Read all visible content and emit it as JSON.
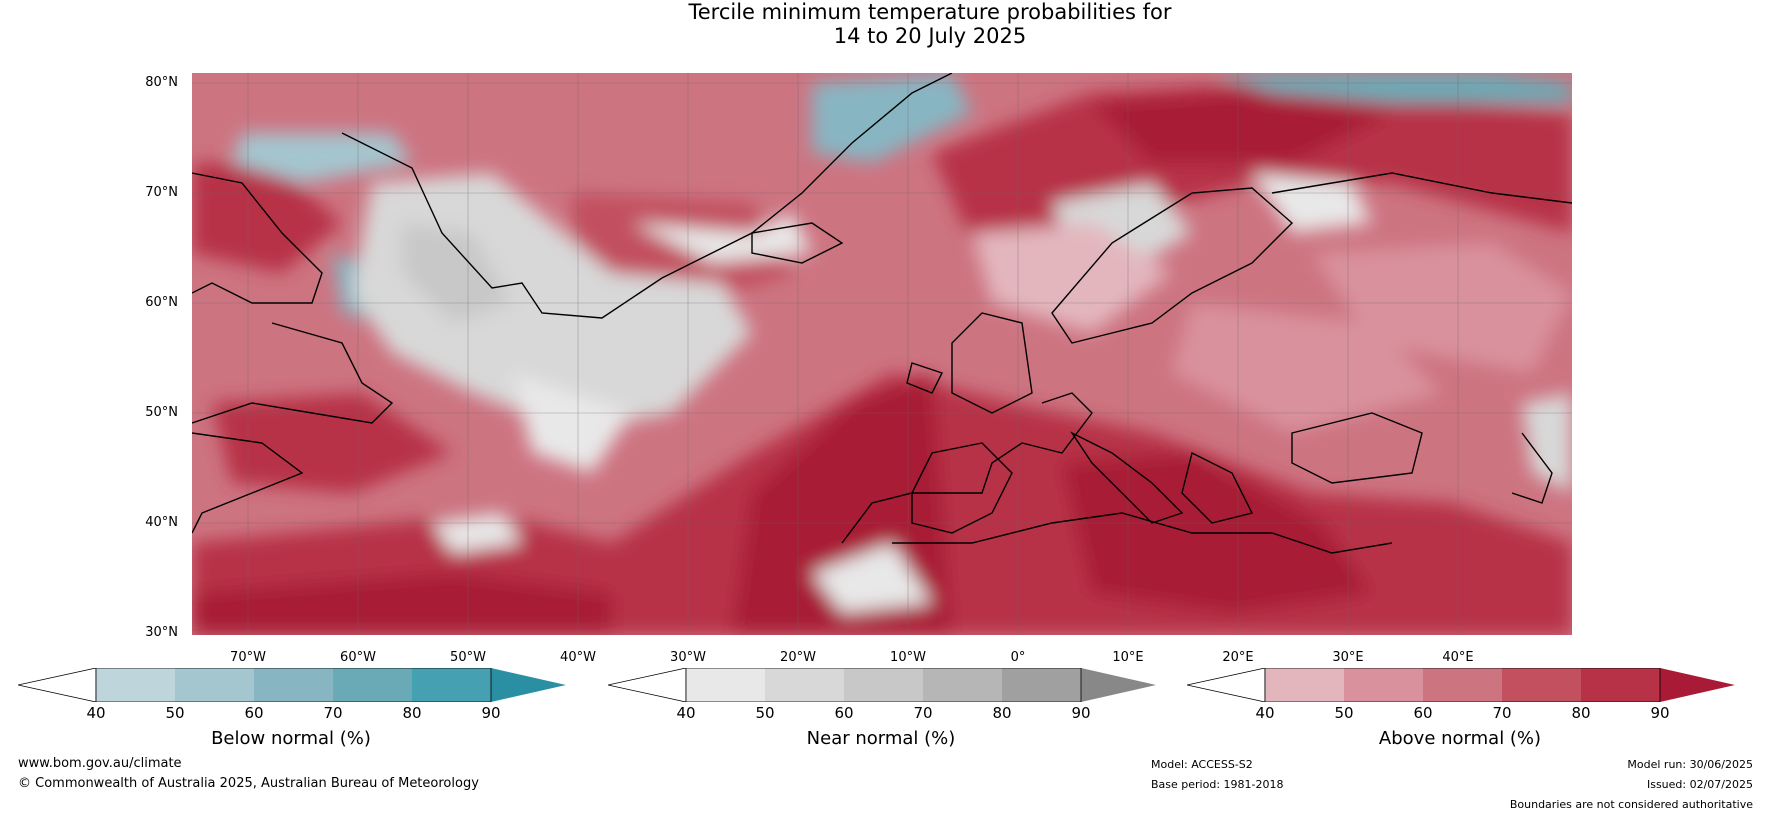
{
  "title_line1": "Tercile minimum temperature probabilities for",
  "title_line2": "14 to 20 July 2025",
  "lat_labels": [
    "80°N",
    "70°N",
    "60°N",
    "50°N",
    "40°N",
    "30°N"
  ],
  "lon_labels": [
    "70°W",
    "60°W",
    "50°W",
    "40°W",
    "30°W",
    "20°W",
    "10°W",
    "0°",
    "10°E",
    "20°E",
    "30°E",
    "40°E"
  ],
  "colorbars": [
    {
      "label": "Below normal (%)",
      "ticks": [
        "40",
        "50",
        "60",
        "70",
        "80",
        "90"
      ],
      "colors": [
        "#bed5dc",
        "#a4c6cf",
        "#88b5c2",
        "#6aaab6",
        "#45a0b2",
        "#2b8fa4"
      ]
    },
    {
      "label": "Near normal (%)",
      "ticks": [
        "40",
        "50",
        "60",
        "70",
        "80",
        "90"
      ],
      "colors": [
        "#e8e8e8",
        "#d8d8d8",
        "#c8c8c8",
        "#b6b6b6",
        "#a0a0a0",
        "#888888"
      ]
    },
    {
      "label": "Above normal (%)",
      "ticks": [
        "40",
        "50",
        "60",
        "70",
        "80",
        "90"
      ],
      "colors": [
        "#e3b6bd",
        "#d9929d",
        "#cd7481",
        "#c2505f",
        "#b73246",
        "#a81a35"
      ]
    }
  ],
  "footer": {
    "website": "www.bom.gov.au/climate",
    "copyright": "© Commonwealth of Australia 2025, Australian Bureau of Meteorology",
    "model": "Model: ACCESS-S2",
    "base_period": "Base period: 1981-2018",
    "model_run": "Model run: 30/06/2025",
    "issued": "Issued: 02/07/2025",
    "disclaimer": "Boundaries are not considered authoritative"
  }
}
